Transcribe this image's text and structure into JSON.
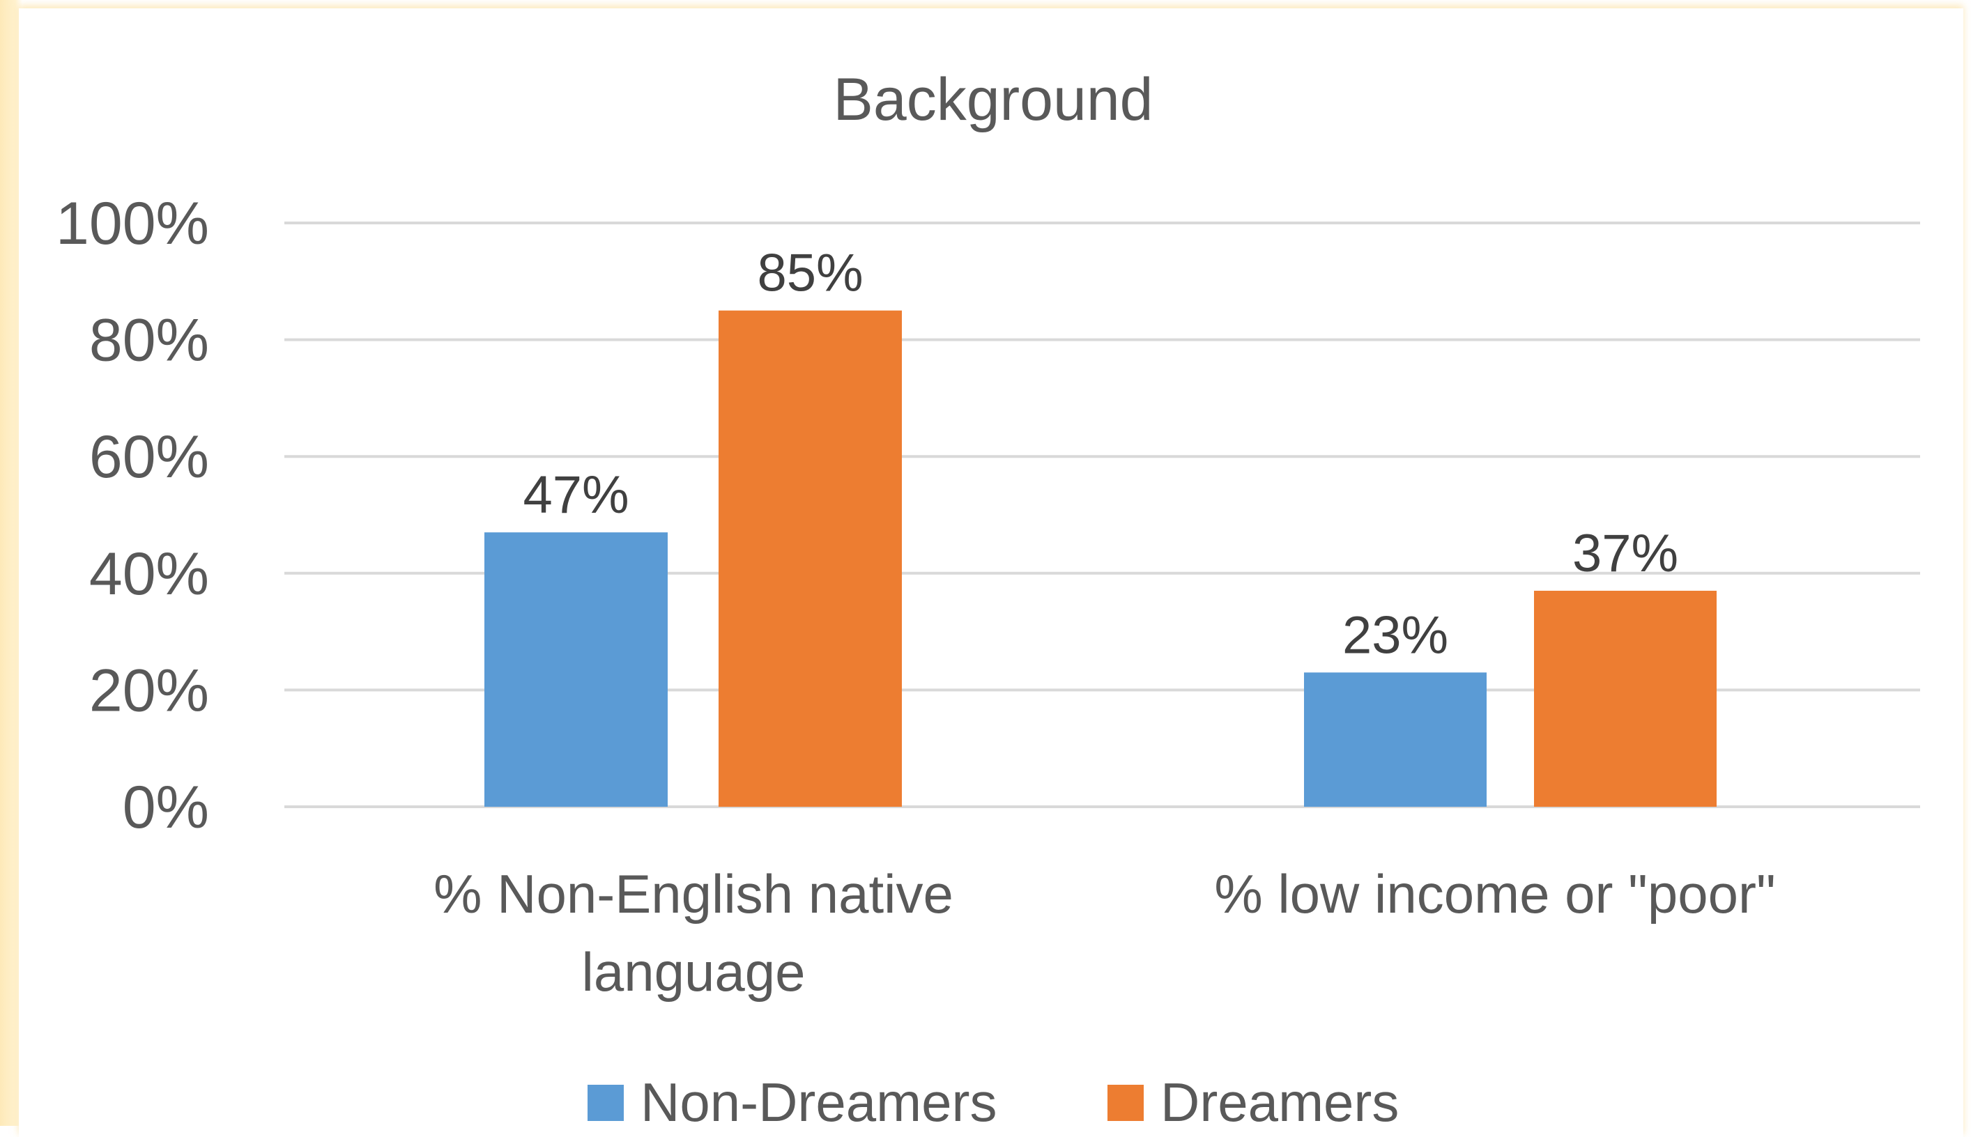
{
  "chart_data": {
    "type": "bar",
    "title": "Background",
    "categories": [
      "% Non-English native language",
      "% low income or \"poor\""
    ],
    "category_lines": [
      [
        "% Non-English native",
        "language"
      ],
      [
        "% low income or \"poor\""
      ]
    ],
    "series": [
      {
        "name": "Non-Dreamers",
        "values": [
          47,
          23
        ],
        "labels": [
          "47%",
          "23%"
        ],
        "color": "#5b9bd5"
      },
      {
        "name": "Dreamers",
        "values": [
          85,
          37
        ],
        "labels": [
          "85%",
          "37%"
        ],
        "color": "#ed7d31"
      }
    ],
    "y_ticks": [
      "0%",
      "20%",
      "40%",
      "60%",
      "80%",
      "100%"
    ],
    "ylim": [
      0,
      100
    ],
    "grid": true,
    "legend": "bottom"
  }
}
